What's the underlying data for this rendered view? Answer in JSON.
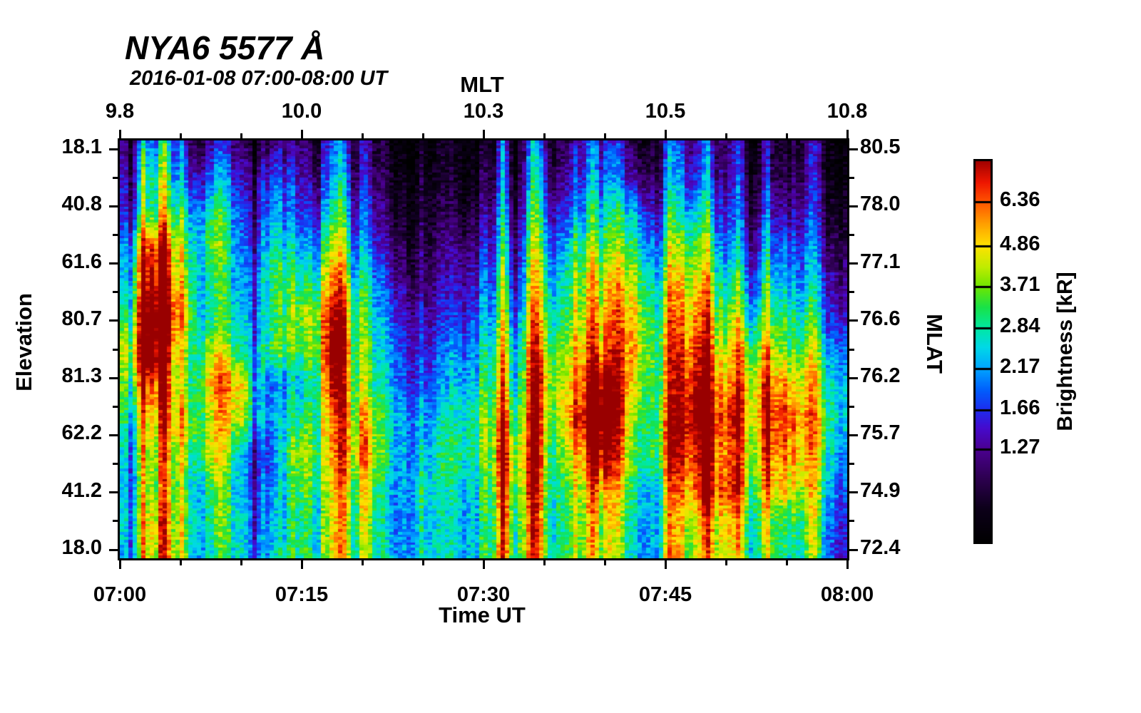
{
  "header": {
    "title": "NYA6 5577 Å",
    "subtitle": "2016-01-08 07:00-08:00 UT"
  },
  "axes": {
    "top": {
      "title": "MLT",
      "ticks": [
        "9.8",
        "10.0",
        "10.3",
        "10.5",
        "10.8"
      ]
    },
    "bottom": {
      "title": "Time UT",
      "ticks": [
        "07:00",
        "07:15",
        "07:30",
        "07:45",
        "08:00"
      ]
    },
    "left": {
      "title": "Elevation",
      "ticks": [
        "18.1",
        "40.8",
        "61.6",
        "80.7",
        "81.3",
        "62.2",
        "41.2",
        "18.0"
      ]
    },
    "right": {
      "title": "MLAT",
      "ticks": [
        "80.5",
        "78.0",
        "77.1",
        "76.6",
        "76.2",
        "75.7",
        "74.9",
        "72.4"
      ]
    }
  },
  "colorbar": {
    "title": "Brightness [kR]",
    "ticks": [
      "6.36",
      "4.86",
      "3.71",
      "2.84",
      "2.17",
      "1.66",
      "1.27"
    ],
    "tick_fractions_from_top": [
      0.111,
      0.226,
      0.331,
      0.439,
      0.544,
      0.652,
      0.754
    ]
  },
  "colors": {
    "background": "#ffffff",
    "axis": "#000000",
    "text": "#000000",
    "colormap_top": "#990000",
    "colormap_bottom": "#000000"
  },
  "chart_data": {
    "type": "heatmap",
    "title": "NYA6 5577 Å",
    "subtitle": "2016-01-08 07:00-08:00 UT",
    "x_axis": {
      "label": "Time UT",
      "start": "07:00",
      "end": "08:00",
      "major_ticks": [
        "07:00",
        "07:15",
        "07:30",
        "07:45",
        "08:00"
      ],
      "minor_tick_step_minutes": 5
    },
    "x_axis_secondary": {
      "label": "MLT",
      "tick_values": [
        9.8,
        10.0,
        10.3,
        10.5,
        10.8
      ]
    },
    "y_axis": {
      "label": "Elevation",
      "tick_values_top_to_bottom": [
        18.1,
        40.8,
        61.6,
        80.7,
        81.3,
        62.2,
        41.2,
        18.0
      ]
    },
    "y_axis_secondary": {
      "label": "MLAT",
      "tick_values_top_to_bottom": [
        80.5,
        78.0,
        77.1,
        76.6,
        76.2,
        75.7,
        74.9,
        72.4
      ]
    },
    "value_axis": {
      "label": "Brightness [kR]",
      "scale": "log",
      "min": 0.74,
      "max": 8.32,
      "colorbar_tick_values": [
        6.36,
        4.86,
        3.71,
        2.84,
        2.17,
        1.66,
        1.27
      ]
    },
    "grid": {
      "description": "Coarse estimate of brightness (kR), 13 elevation rows (top=18.1 elev / 80.5 MLAT, bottom=18.0 elev / 72.4 MLAT) x 25 time samples every 2.5 min from 07:00 UT",
      "time_minutes_after_0700": [
        0,
        2.5,
        5,
        7.5,
        10,
        12.5,
        15,
        17.5,
        20,
        22.5,
        25,
        27.5,
        30,
        32.5,
        35,
        37.5,
        40,
        42.5,
        45,
        47.5,
        50,
        52.5,
        55,
        57.5,
        60
      ],
      "brightness_kR": [
        [
          1.3,
          1.35,
          1.3,
          1.5,
          1.2,
          1.25,
          1.1,
          1.0,
          0.95,
          0.9,
          0.85,
          0.85,
          0.9,
          0.85,
          0.9,
          0.95,
          1.0,
          1.0,
          0.95,
          1.0,
          0.9,
          0.85,
          0.9,
          0.85,
          0.8
        ],
        [
          1.6,
          1.8,
          1.7,
          2.2,
          1.5,
          1.9,
          1.3,
          1.2,
          1.1,
          1.0,
          0.95,
          0.9,
          1.0,
          0.95,
          1.0,
          1.1,
          1.2,
          1.3,
          1.1,
          1.2,
          1.0,
          0.95,
          1.0,
          0.9,
          0.85
        ],
        [
          1.7,
          2.0,
          2.4,
          3.2,
          1.8,
          2.2,
          1.5,
          1.6,
          1.3,
          1.1,
          1.0,
          1.0,
          1.2,
          1.1,
          1.3,
          1.4,
          1.6,
          2.2,
          1.3,
          1.8,
          1.2,
          1.1,
          1.3,
          1.0,
          0.95
        ],
        [
          2.2,
          4.5,
          3.0,
          4.0,
          2.0,
          2.8,
          2.0,
          2.4,
          1.6,
          1.3,
          1.1,
          1.2,
          1.5,
          1.3,
          1.6,
          2.0,
          2.0,
          3.0,
          1.8,
          2.6,
          1.5,
          1.4,
          1.8,
          1.2,
          1.1
        ],
        [
          2.6,
          5.5,
          3.6,
          3.2,
          2.2,
          3.4,
          2.6,
          3.2,
          2.0,
          1.6,
          1.2,
          1.4,
          1.8,
          1.5,
          2.0,
          2.4,
          2.8,
          4.0,
          2.2,
          3.4,
          2.0,
          1.8,
          2.2,
          1.5,
          1.3
        ],
        [
          3.2,
          6.5,
          4.5,
          3.0,
          2.6,
          3.0,
          3.6,
          4.5,
          2.4,
          2.0,
          1.4,
          1.6,
          2.2,
          1.8,
          2.4,
          2.8,
          3.2,
          4.8,
          2.6,
          4.2,
          2.6,
          2.4,
          3.0,
          1.8,
          1.5
        ],
        [
          4.8,
          6.8,
          3.4,
          4.6,
          2.8,
          3.6,
          3.0,
          5.5,
          2.6,
          2.2,
          1.6,
          2.0,
          2.6,
          2.4,
          2.8,
          3.2,
          3.8,
          5.2,
          3.0,
          5.0,
          3.2,
          3.6,
          3.4,
          2.4,
          2.0
        ],
        [
          3.8,
          4.6,
          3.0,
          5.8,
          5.0,
          2.0,
          2.2,
          4.6,
          2.8,
          2.4,
          1.8,
          2.2,
          3.0,
          2.6,
          3.4,
          3.8,
          6.2,
          4.4,
          3.0,
          6.0,
          4.0,
          4.4,
          5.2,
          3.0,
          2.4
        ],
        [
          3.4,
          3.0,
          4.2,
          4.8,
          4.5,
          2.2,
          2.8,
          3.4,
          3.8,
          2.8,
          2.2,
          2.6,
          3.6,
          3.2,
          3.0,
          4.4,
          7.2,
          3.6,
          3.4,
          6.8,
          5.0,
          4.6,
          6.5,
          3.4,
          2.6
        ],
        [
          2.8,
          2.6,
          3.4,
          5.2,
          2.4,
          2.0,
          4.0,
          3.0,
          4.6,
          2.6,
          2.4,
          3.0,
          3.4,
          4.2,
          2.8,
          3.4,
          5.8,
          3.2,
          3.6,
          5.4,
          4.4,
          4.0,
          5.8,
          3.2,
          2.2
        ],
        [
          2.6,
          2.4,
          3.0,
          3.6,
          2.4,
          2.2,
          3.2,
          2.6,
          3.4,
          2.4,
          2.8,
          2.6,
          3.0,
          3.8,
          2.6,
          2.8,
          3.6,
          2.8,
          2.6,
          4.6,
          5.2,
          3.4,
          4.8,
          2.8,
          1.9
        ],
        [
          2.8,
          3.0,
          3.2,
          3.4,
          2.6,
          2.4,
          2.8,
          2.5,
          3.0,
          2.3,
          2.6,
          2.4,
          2.8,
          3.2,
          2.4,
          2.6,
          2.8,
          2.5,
          2.4,
          3.2,
          3.6,
          2.8,
          3.0,
          2.4,
          1.7
        ],
        [
          2.4,
          2.9,
          3.3,
          3.0,
          2.7,
          2.5,
          2.9,
          2.6,
          2.8,
          2.4,
          2.7,
          2.5,
          2.9,
          3.1,
          2.5,
          2.7,
          2.6,
          2.4,
          2.5,
          3.0,
          3.3,
          2.6,
          2.8,
          2.2,
          1.5
        ]
      ]
    },
    "colormap_stops": [
      [
        0.0,
        0,
        0,
        0
      ],
      [
        0.09,
        12,
        0,
        25
      ],
      [
        0.17,
        45,
        0,
        80
      ],
      [
        0.246,
        75,
        0,
        145
      ],
      [
        0.3,
        70,
        10,
        205
      ],
      [
        0.348,
        30,
        45,
        238
      ],
      [
        0.4,
        0,
        95,
        252
      ],
      [
        0.456,
        0,
        165,
        255
      ],
      [
        0.51,
        0,
        216,
        232
      ],
      [
        0.561,
        0,
        232,
        162
      ],
      [
        0.615,
        25,
        226,
        72
      ],
      [
        0.669,
        112,
        230,
        0
      ],
      [
        0.72,
        192,
        236,
        0
      ],
      [
        0.774,
        255,
        226,
        0
      ],
      [
        0.83,
        255,
        162,
        0
      ],
      [
        0.889,
        255,
        84,
        0
      ],
      [
        0.94,
        238,
        22,
        0
      ],
      [
        1.0,
        153,
        0,
        0
      ]
    ],
    "legend_position": "right colorbar",
    "grid_lines": "off"
  }
}
